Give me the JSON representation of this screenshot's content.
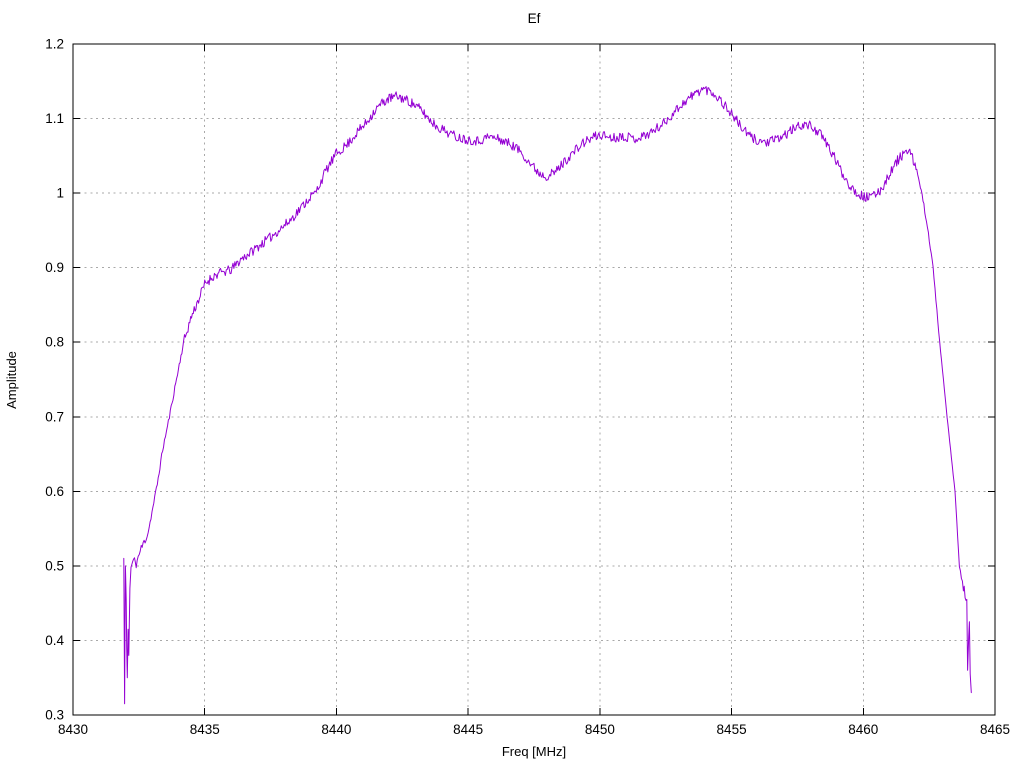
{
  "chart_data": {
    "type": "line",
    "title": "Ef",
    "xlabel": "Freq [MHz]",
    "ylabel": "Amplitude",
    "xlim": [
      8430,
      8465
    ],
    "ylim": [
      0.3,
      1.2
    ],
    "x_ticks": [
      8430,
      8435,
      8440,
      8445,
      8450,
      8455,
      8460,
      8465
    ],
    "x_tick_labels": [
      "8430",
      "8435",
      "8440",
      "8445",
      "8450",
      "8455",
      "8460",
      "8465"
    ],
    "y_ticks": [
      0.3,
      0.4,
      0.5,
      0.6,
      0.7,
      0.8,
      0.9,
      1.0,
      1.1,
      1.2
    ],
    "y_tick_labels": [
      "0.3",
      "0.4",
      "0.5",
      "0.6",
      "0.7",
      "0.8",
      "0.9",
      "1",
      "1.1",
      "1.2"
    ],
    "grid": true,
    "legend": "none",
    "colors": {
      "line": "#9400d3",
      "grid": "#a9a9a9",
      "border": "#000000",
      "background": "#ffffff",
      "text": "#000000"
    },
    "noise": {
      "amplitude": 0.0065,
      "step": 0.035,
      "seed": 11
    },
    "series": [
      {
        "name": "Ef",
        "points": [
          [
            8431.93,
            0.51
          ],
          [
            8431.96,
            0.315
          ],
          [
            8431.99,
            0.5
          ],
          [
            8432.02,
            0.455
          ],
          [
            8432.04,
            0.39
          ],
          [
            8432.06,
            0.35
          ],
          [
            8432.09,
            0.415
          ],
          [
            8432.12,
            0.38
          ],
          [
            8432.16,
            0.47
          ],
          [
            8432.2,
            0.498
          ],
          [
            8432.3,
            0.508
          ],
          [
            8432.4,
            0.503
          ],
          [
            8432.55,
            0.52
          ],
          [
            8432.7,
            0.532
          ],
          [
            8432.85,
            0.545
          ],
          [
            8433.0,
            0.572
          ],
          [
            8433.2,
            0.61
          ],
          [
            8433.4,
            0.655
          ],
          [
            8433.66,
            0.7
          ],
          [
            8433.9,
            0.745
          ],
          [
            8434.2,
            0.8
          ],
          [
            8434.5,
            0.835
          ],
          [
            8434.8,
            0.86
          ],
          [
            8435.0,
            0.878
          ],
          [
            8435.3,
            0.888
          ],
          [
            8435.6,
            0.893
          ],
          [
            8436.0,
            0.897
          ],
          [
            8436.4,
            0.912
          ],
          [
            8436.8,
            0.922
          ],
          [
            8437.0,
            0.928
          ],
          [
            8437.4,
            0.938
          ],
          [
            8437.8,
            0.95
          ],
          [
            8438.2,
            0.962
          ],
          [
            8438.6,
            0.978
          ],
          [
            8439.0,
            0.995
          ],
          [
            8439.2,
            1.0
          ],
          [
            8439.6,
            1.03
          ],
          [
            8440.0,
            1.053
          ],
          [
            8440.4,
            1.065
          ],
          [
            8440.8,
            1.082
          ],
          [
            8441.1,
            1.093
          ],
          [
            8441.4,
            1.108
          ],
          [
            8441.7,
            1.12
          ],
          [
            8442.0,
            1.127
          ],
          [
            8442.3,
            1.13
          ],
          [
            8442.6,
            1.126
          ],
          [
            8442.9,
            1.12
          ],
          [
            8443.2,
            1.112
          ],
          [
            8443.5,
            1.1
          ],
          [
            8443.8,
            1.09
          ],
          [
            8444.2,
            1.082
          ],
          [
            8444.6,
            1.075
          ],
          [
            8445.0,
            1.072
          ],
          [
            8445.4,
            1.07
          ],
          [
            8445.8,
            1.076
          ],
          [
            8446.2,
            1.072
          ],
          [
            8446.6,
            1.066
          ],
          [
            8447.0,
            1.056
          ],
          [
            8447.4,
            1.038
          ],
          [
            8447.7,
            1.027
          ],
          [
            8448.0,
            1.023
          ],
          [
            8448.3,
            1.028
          ],
          [
            8448.6,
            1.04
          ],
          [
            8449.0,
            1.055
          ],
          [
            8449.4,
            1.068
          ],
          [
            8449.8,
            1.076
          ],
          [
            8450.1,
            1.078
          ],
          [
            8450.5,
            1.074
          ],
          [
            8450.9,
            1.077
          ],
          [
            8451.3,
            1.073
          ],
          [
            8451.7,
            1.077
          ],
          [
            8452.1,
            1.085
          ],
          [
            8452.5,
            1.096
          ],
          [
            8452.9,
            1.112
          ],
          [
            8453.3,
            1.125
          ],
          [
            8453.6,
            1.133
          ],
          [
            8453.9,
            1.14
          ],
          [
            8454.2,
            1.137
          ],
          [
            8454.5,
            1.128
          ],
          [
            8454.8,
            1.115
          ],
          [
            8455.1,
            1.102
          ],
          [
            8455.4,
            1.087
          ],
          [
            8455.7,
            1.076
          ],
          [
            8456.0,
            1.07
          ],
          [
            8456.4,
            1.068
          ],
          [
            8456.8,
            1.073
          ],
          [
            8457.1,
            1.08
          ],
          [
            8457.4,
            1.087
          ],
          [
            8457.7,
            1.092
          ],
          [
            8458.0,
            1.09
          ],
          [
            8458.3,
            1.082
          ],
          [
            8458.6,
            1.067
          ],
          [
            8458.9,
            1.048
          ],
          [
            8459.2,
            1.027
          ],
          [
            8459.5,
            1.01
          ],
          [
            8459.8,
            0.999
          ],
          [
            8460.1,
            0.994
          ],
          [
            8460.4,
            0.996
          ],
          [
            8460.7,
            1.006
          ],
          [
            8461.0,
            1.026
          ],
          [
            8461.3,
            1.044
          ],
          [
            8461.6,
            1.056
          ],
          [
            8461.8,
            1.052
          ],
          [
            8462.0,
            1.035
          ],
          [
            8462.2,
            1.002
          ],
          [
            8462.4,
            0.964
          ],
          [
            8462.65,
            0.9
          ],
          [
            8462.9,
            0.8
          ],
          [
            8463.18,
            0.7
          ],
          [
            8463.48,
            0.6
          ],
          [
            8463.65,
            0.5
          ],
          [
            8463.8,
            0.47
          ],
          [
            8463.93,
            0.455
          ],
          [
            8463.96,
            0.36
          ],
          [
            8464.0,
            0.405
          ],
          [
            8464.03,
            0.425
          ],
          [
            8464.06,
            0.355
          ],
          [
            8464.1,
            0.33
          ]
        ]
      }
    ]
  }
}
